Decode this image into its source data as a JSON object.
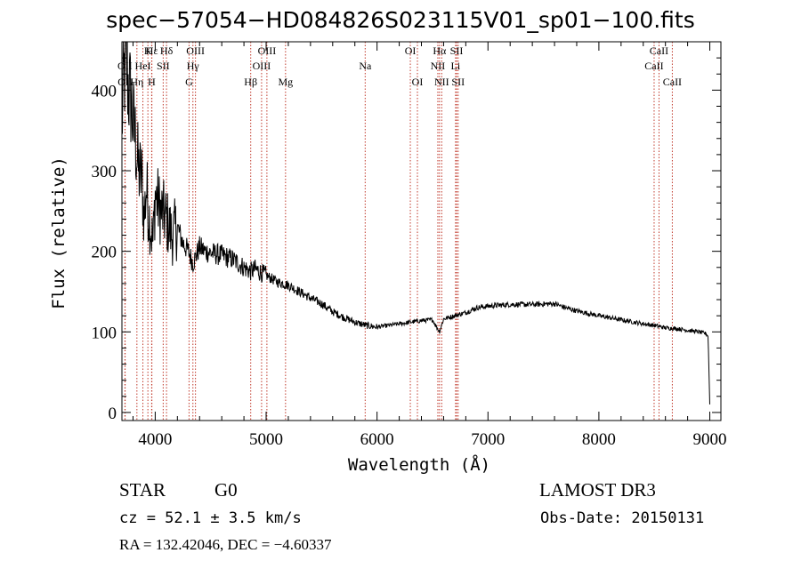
{
  "chart_data": {
    "type": "line",
    "title": "spec−57054−HD084826S023115V01_sp01−100.fits",
    "xlabel": "Wavelength (Å)",
    "ylabel": "Flux (relative)",
    "xlim": [
      3700,
      9100
    ],
    "ylim": [
      -10,
      460
    ],
    "xticks": [
      4000,
      5000,
      6000,
      7000,
      8000,
      9000
    ],
    "yticks": [
      0,
      100,
      200,
      300,
      400
    ],
    "grid": false,
    "series": [
      {
        "name": "flux",
        "x": [
          3700,
          3720,
          3740,
          3760,
          3780,
          3800,
          3820,
          3850,
          3880,
          3900,
          3920,
          3940,
          3960,
          3980,
          4000,
          4050,
          4100,
          4150,
          4200,
          4250,
          4300,
          4340,
          4400,
          4450,
          4500,
          4600,
          4700,
          4800,
          4861,
          4900,
          5000,
          5100,
          5200,
          5300,
          5400,
          5500,
          5600,
          5700,
          5800,
          5900,
          6000,
          6100,
          6200,
          6300,
          6400,
          6500,
          6563,
          6600,
          6700,
          6800,
          6900,
          7000,
          7200,
          7400,
          7600,
          7700,
          7800,
          8000,
          8200,
          8400,
          8500,
          8600,
          8700,
          8800,
          8900,
          8960,
          8985,
          9000
        ],
        "y": [
          360,
          420,
          440,
          400,
          390,
          360,
          340,
          300,
          290,
          240,
          280,
          250,
          230,
          210,
          270,
          250,
          240,
          220,
          230,
          210,
          200,
          185,
          205,
          200,
          198,
          195,
          190,
          180,
          175,
          178,
          170,
          162,
          158,
          150,
          142,
          135,
          125,
          118,
          112,
          108,
          106,
          108,
          110,
          112,
          114,
          115,
          100,
          116,
          120,
          124,
          130,
          132,
          134,
          134,
          135,
          130,
          126,
          120,
          115,
          110,
          108,
          105,
          104,
          102,
          100,
          98,
          95,
          10
        ]
      }
    ],
    "line_annotations": [
      {
        "label": "Hε",
        "x": 3970,
        "row": 0
      },
      {
        "label": "Hδ",
        "x": 4102,
        "row": 0
      },
      {
        "label": "K",
        "x": 3934,
        "row": 0
      },
      {
        "label": "OIII",
        "x": 4363,
        "row": 0
      },
      {
        "label": "OIII",
        "x": 5007,
        "row": 0
      },
      {
        "label": "OI",
        "x": 6300,
        "row": 0
      },
      {
        "label": "Hα",
        "x": 6563,
        "row": 0
      },
      {
        "label": "SII",
        "x": 6717,
        "row": 0
      },
      {
        "label": "CaII",
        "x": 8542,
        "row": 0
      },
      {
        "label": "OII",
        "x": 3727,
        "row": 1
      },
      {
        "label": "HeI",
        "x": 3889,
        "row": 1
      },
      {
        "label": "SII",
        "x": 4072,
        "row": 1
      },
      {
        "label": "Hγ",
        "x": 4340,
        "row": 1
      },
      {
        "label": "OIII",
        "x": 4959,
        "row": 1
      },
      {
        "label": "Na",
        "x": 5893,
        "row": 1
      },
      {
        "label": "NII",
        "x": 6548,
        "row": 1
      },
      {
        "label": "Li",
        "x": 6708,
        "row": 1
      },
      {
        "label": "CaII",
        "x": 8498,
        "row": 1
      },
      {
        "label": "OII",
        "x": 3729,
        "row": 2
      },
      {
        "label": "Hη",
        "x": 3835,
        "row": 2
      },
      {
        "label": "H",
        "x": 3968,
        "row": 2
      },
      {
        "label": "G",
        "x": 4305,
        "row": 2
      },
      {
        "label": "Hβ",
        "x": 4861,
        "row": 2
      },
      {
        "label": "Mg",
        "x": 5175,
        "row": 2
      },
      {
        "label": "OI",
        "x": 6364,
        "row": 2
      },
      {
        "label": "NII",
        "x": 6583,
        "row": 2
      },
      {
        "label": "SII",
        "x": 6731,
        "row": 2
      },
      {
        "label": "CaII",
        "x": 8662,
        "row": 2
      }
    ]
  },
  "info": {
    "class": "STAR",
    "subclass": "G0",
    "survey": "LAMOST DR3",
    "cz": "cz = 52.1 ± 3.5 km/s",
    "obs_date": "Obs-Date: 20150131",
    "radec": "RA = 132.42046, DEC =  −4.60337"
  }
}
